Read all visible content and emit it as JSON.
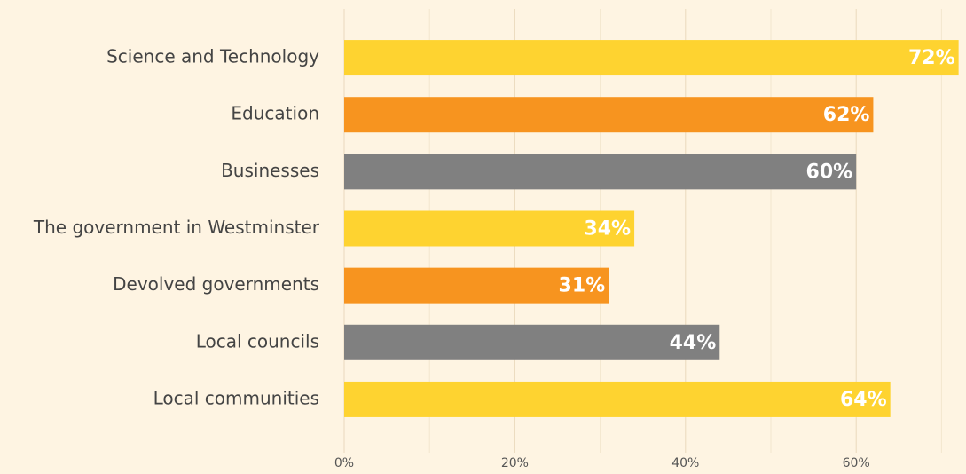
{
  "chart_data": {
    "type": "hbar",
    "categories": [
      "Science and Technology",
      "Education",
      "Businesses",
      "The government in Westminster",
      "Devolved governments",
      "Local councils",
      "Local communities"
    ],
    "values": [
      72,
      62,
      60,
      34,
      31,
      44,
      64
    ],
    "value_labels": [
      "72%",
      "62%",
      "60%",
      "34%",
      "31%",
      "44%",
      "64%"
    ],
    "colors": [
      "#fed330",
      "#f7941f",
      "#808080",
      "#fed330",
      "#f7941f",
      "#808080",
      "#fed330"
    ],
    "xlim": [
      0,
      73
    ],
    "xticks": [
      {
        "value": 0,
        "label": "0%"
      },
      {
        "value": 20,
        "label": "20%"
      },
      {
        "value": 40,
        "label": "40%"
      },
      {
        "value": 60,
        "label": "60%"
      }
    ],
    "minor_xticks": [
      10,
      30,
      50,
      70
    ],
    "grid": true
  }
}
